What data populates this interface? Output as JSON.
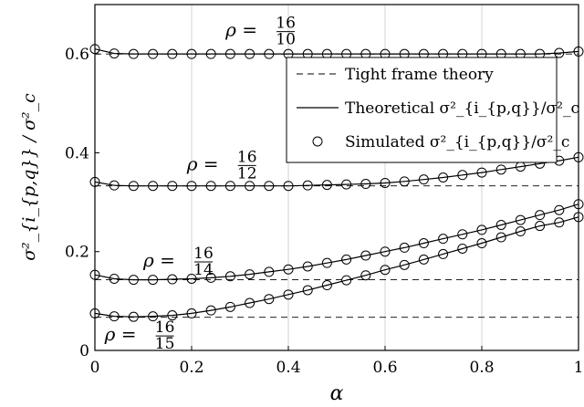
{
  "chart_data": {
    "type": "line",
    "xlabel": "α",
    "ylabel": "σ²_{i_{p,q}} / σ²_c",
    "xlim": [
      0,
      1
    ],
    "ylim": [
      0,
      0.7
    ],
    "x_ticks": [
      "0",
      "0.2",
      "0.4",
      "0.6",
      "0.8",
      "1"
    ],
    "y_ticks": [
      "0",
      "0.2",
      "0.4",
      "0.6"
    ],
    "grid": "vertical",
    "legend": {
      "placement": "upper-right",
      "entries": [
        {
          "label": "Tight frame theory",
          "style": "dashed"
        },
        {
          "label": "Theoretical σ²_{i_{p,q}}/σ²_c",
          "style": "solid"
        },
        {
          "label": "Simulated σ²_{i_{p,q}}/σ²_c",
          "style": "circle-markers"
        }
      ]
    },
    "x": [
      0,
      0.04,
      0.08,
      0.12,
      0.16,
      0.2,
      0.24,
      0.28,
      0.32,
      0.36,
      0.4,
      0.44,
      0.48,
      0.52,
      0.56,
      0.6,
      0.64,
      0.68,
      0.72,
      0.76,
      0.8,
      0.84,
      0.88,
      0.92,
      0.96,
      1.0
    ],
    "series": [
      {
        "name": "ρ = 16/10",
        "annotation": {
          "prefix": "ρ =",
          "num": "16",
          "den": "10"
        },
        "tight_frame": 0.6,
        "values": [
          0.61,
          0.601,
          0.6,
          0.6,
          0.6,
          0.6,
          0.6,
          0.6,
          0.6,
          0.6,
          0.6,
          0.6,
          0.6,
          0.6,
          0.6,
          0.6,
          0.6,
          0.6,
          0.6,
          0.6,
          0.6,
          0.6,
          0.6,
          0.6,
          0.602,
          0.605
        ]
      },
      {
        "name": "ρ = 16/12",
        "annotation": {
          "prefix": "ρ =",
          "num": "16",
          "den": "12"
        },
        "tight_frame": 0.333,
        "values": [
          0.341,
          0.334,
          0.333,
          0.333,
          0.333,
          0.333,
          0.333,
          0.333,
          0.333,
          0.333,
          0.333,
          0.334,
          0.335,
          0.336,
          0.337,
          0.339,
          0.342,
          0.346,
          0.35,
          0.355,
          0.36,
          0.366,
          0.372,
          0.378,
          0.384,
          0.391
        ]
      },
      {
        "name": "ρ = 16/14",
        "annotation": {
          "prefix": "ρ =",
          "num": "16",
          "den": "14"
        },
        "tight_frame": 0.143,
        "values": [
          0.153,
          0.145,
          0.143,
          0.143,
          0.144,
          0.145,
          0.147,
          0.15,
          0.154,
          0.159,
          0.164,
          0.17,
          0.177,
          0.184,
          0.192,
          0.2,
          0.208,
          0.217,
          0.226,
          0.235,
          0.244,
          0.254,
          0.264,
          0.274,
          0.284,
          0.296
        ]
      },
      {
        "name": "ρ = 16/15",
        "annotation": {
          "prefix": "ρ =",
          "num": "16",
          "den": "15"
        },
        "tight_frame": 0.067,
        "values": [
          0.075,
          0.069,
          0.068,
          0.069,
          0.071,
          0.075,
          0.081,
          0.088,
          0.096,
          0.104,
          0.113,
          0.122,
          0.132,
          0.142,
          0.152,
          0.163,
          0.173,
          0.184,
          0.195,
          0.206,
          0.217,
          0.229,
          0.241,
          0.252,
          0.259,
          0.27
        ]
      }
    ]
  }
}
